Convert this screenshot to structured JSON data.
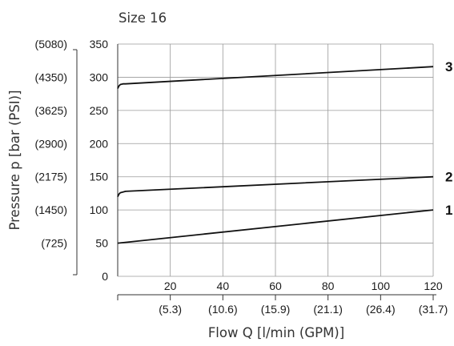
{
  "chart_data": {
    "type": "line",
    "title": "Size 16",
    "xlabel": "Flow Q [l/min (GPM)]",
    "ylabel": "Pressure p [bar (PSI)]",
    "xlim": [
      0,
      120
    ],
    "ylim": [
      0,
      350
    ],
    "grid": true,
    "x_ticks": [
      "20",
      "40",
      "60",
      "80",
      "100",
      "120"
    ],
    "x_ticks_secondary": [
      "(5.3)",
      "(10.6)",
      "(15.9)",
      "(21.1)",
      "(26.4)",
      "(31.7)"
    ],
    "y_ticks": [
      "0",
      "50",
      "100",
      "150",
      "200",
      "250",
      "300",
      "350"
    ],
    "y_ticks_secondary": [
      "(725)",
      "(1450)",
      "(2175)",
      "(2900)",
      "(3625)",
      "(4350)",
      "(5080)"
    ],
    "series": [
      {
        "name": "1",
        "x": [
          0,
          120
        ],
        "y": [
          50,
          100
        ]
      },
      {
        "name": "2",
        "x": [
          0,
          0.5,
          1,
          2,
          3,
          120
        ],
        "y": [
          120,
          124,
          126,
          127,
          128,
          150
        ]
      },
      {
        "name": "3",
        "x": [
          0,
          0.5,
          1,
          2,
          3,
          120
        ],
        "y": [
          283,
          287,
          289,
          290,
          290,
          316
        ]
      }
    ]
  }
}
